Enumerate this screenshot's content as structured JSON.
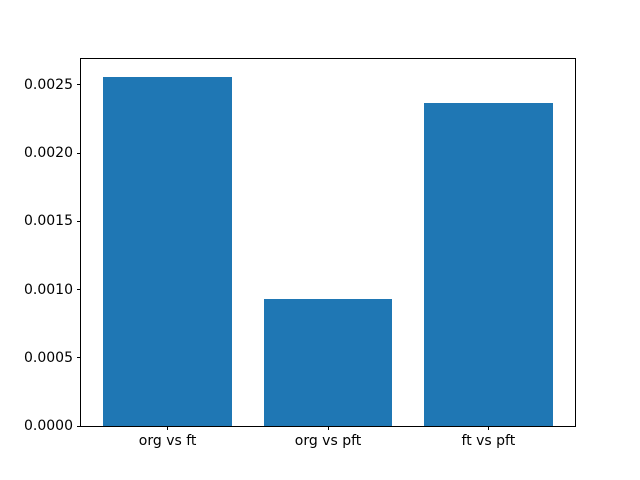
{
  "figure": {
    "background": "#ffffff",
    "frame_color": "#000000",
    "text_color": "#000000"
  },
  "chart_data": {
    "type": "bar",
    "title": "",
    "xlabel": "",
    "ylabel": "",
    "categories": [
      "org vs ft",
      "org vs pft",
      "ft vs pft"
    ],
    "values": [
      0.00256,
      0.00093,
      0.00237
    ],
    "bar_color": "#1f77b4",
    "bar_width": 0.8,
    "xlim": [
      -0.54,
      2.54
    ],
    "ylim": [
      0,
      0.00269
    ],
    "yticks": [
      {
        "value": 0.0,
        "label": "0.0000"
      },
      {
        "value": 0.0005,
        "label": "0.0005"
      },
      {
        "value": 0.001,
        "label": "0.0010"
      },
      {
        "value": 0.0015,
        "label": "0.0015"
      },
      {
        "value": 0.002,
        "label": "0.0020"
      },
      {
        "value": 0.0025,
        "label": "0.0025"
      }
    ],
    "grid": false,
    "legend": null
  }
}
